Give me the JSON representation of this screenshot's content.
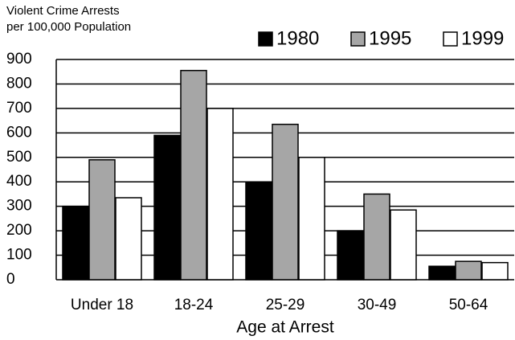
{
  "chart_data": {
    "type": "bar",
    "ylabel": [
      "Violent Crime Arrests",
      "per 100,000 Population"
    ],
    "xlabel": "Age at Arrest",
    "categories": [
      "Under 18",
      "18-24",
      "25-29",
      "30-49",
      "50-64"
    ],
    "series": [
      {
        "name": "1980",
        "color": "#000000",
        "values": [
          300,
          590,
          400,
          200,
          55
        ]
      },
      {
        "name": "1995",
        "color": "#a6a6a6",
        "values": [
          490,
          855,
          635,
          350,
          75
        ]
      },
      {
        "name": "1999",
        "color": "#ffffff",
        "values": [
          335,
          700,
          500,
          285,
          70
        ]
      }
    ],
    "ylim": [
      0,
      900
    ],
    "yticks": [
      0,
      100,
      200,
      300,
      400,
      500,
      600,
      700,
      800,
      900
    ],
    "grid": true
  }
}
